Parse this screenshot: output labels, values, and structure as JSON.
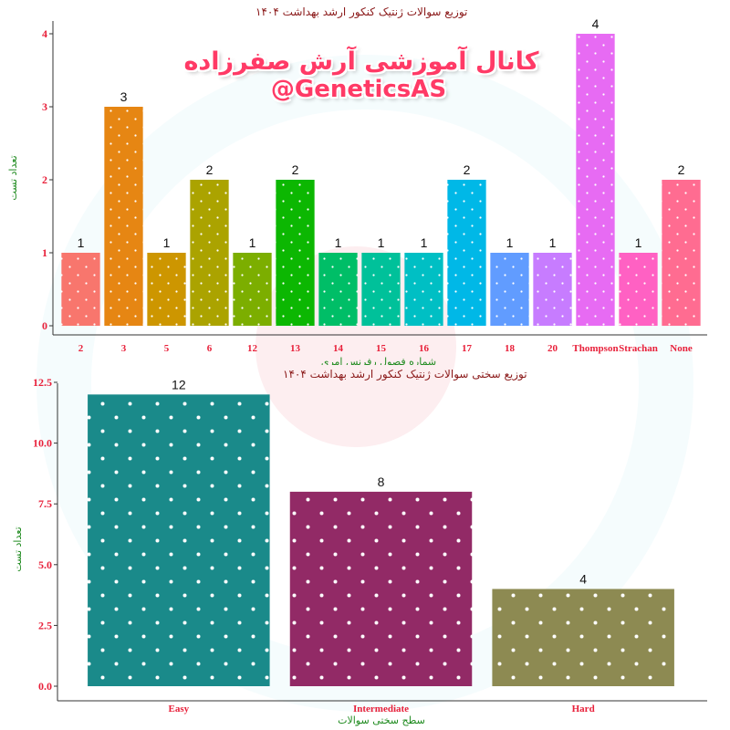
{
  "colors": {
    "title": "#8b1a1a",
    "tick": "#e8203a",
    "axis_label": "#1e8a1e",
    "watermark": "#ff3a66",
    "dot": "#ffffff"
  },
  "watermark": {
    "line1": "کانال آموزشی آرش صفرزاده",
    "line2": "@GeneticsAS"
  },
  "chart_data": [
    {
      "type": "bar",
      "title": "توزیع سوالات ژنتیک کنکور ارشد بهداشت ۱۴۰۴",
      "xlabel": "شماره فصول رفرنس امری",
      "ylabel": "تعداد تست",
      "categories": [
        "2",
        "3",
        "5",
        "6",
        "12",
        "13",
        "14",
        "15",
        "16",
        "17",
        "18",
        "20",
        "Thompson",
        "Strachan",
        "None"
      ],
      "values": [
        1,
        3,
        1,
        2,
        1,
        2,
        1,
        1,
        1,
        2,
        1,
        1,
        4,
        1,
        2
      ],
      "bar_colors": [
        "#f8766d",
        "#e68613",
        "#cd9600",
        "#aba300",
        "#7cae00",
        "#0cb702",
        "#00be67",
        "#00c19a",
        "#00bfc4",
        "#00b8e7",
        "#619cff",
        "#c77cff",
        "#e76bf3",
        "#ff61c3",
        "#ff6c91"
      ],
      "ylim": [
        0,
        4
      ],
      "yticks": [
        "0",
        "1",
        "2",
        "3",
        "4"
      ],
      "grid": false,
      "legend": "none"
    },
    {
      "type": "bar",
      "title": "توزیع سختی سوالات ژنتیک کنکور ارشد بهداشت ۱۴۰۴",
      "xlabel": "سطح سختی سوالات",
      "ylabel": "تعداد تست",
      "categories": [
        "Easy",
        "Intermediate",
        "Hard"
      ],
      "values": [
        12,
        8,
        4
      ],
      "bar_colors": [
        "#1a8a8a",
        "#922a66",
        "#8d8a52"
      ],
      "ylim": [
        0,
        12.5
      ],
      "yticks": [
        "0.0",
        "2.5",
        "5.0",
        "7.5",
        "10.0",
        "12.5"
      ],
      "grid": false,
      "legend": "none"
    }
  ]
}
